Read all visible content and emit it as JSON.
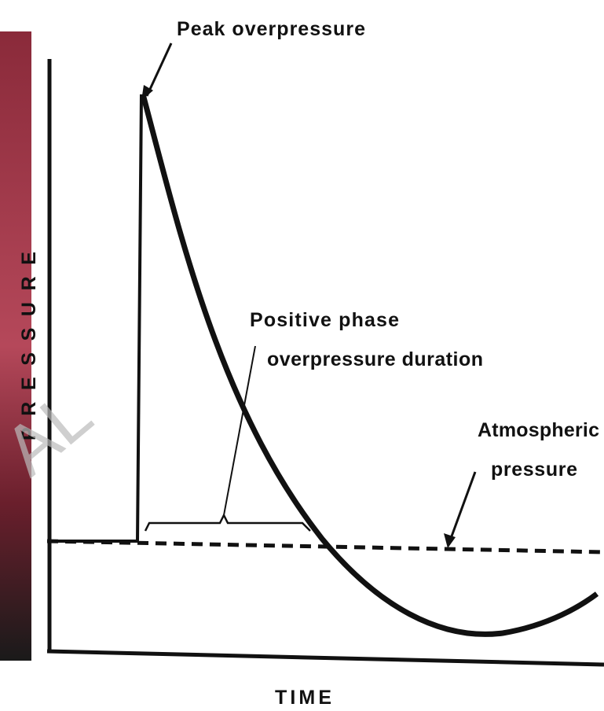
{
  "title": "Peak overpressure",
  "positive_phase": [
    "Positive phase",
    "overpressure duration"
  ],
  "atmospheric": [
    "Atmospheric",
    "pressure"
  ],
  "y_axis_label": "PRESSURE",
  "x_axis_label": "TIME",
  "watermark": "AL"
}
